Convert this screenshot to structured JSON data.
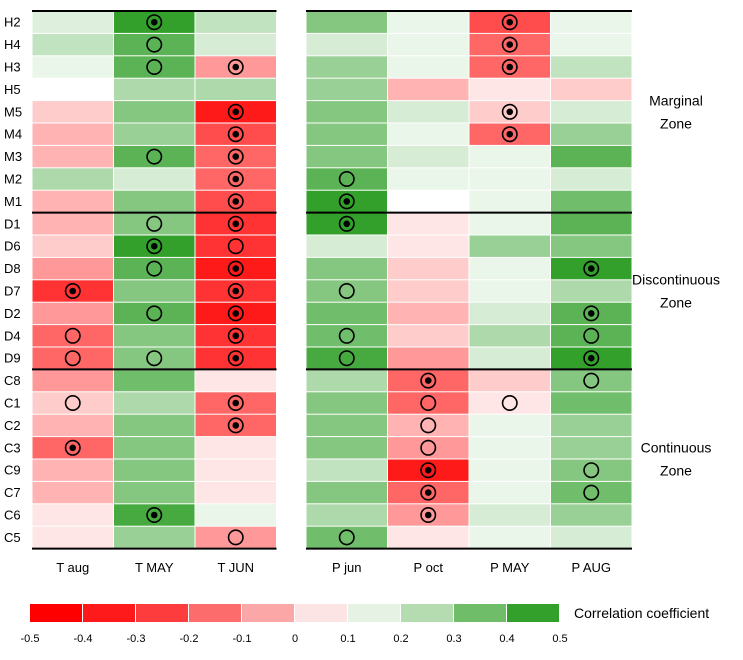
{
  "chart_data": {
    "type": "heatmap",
    "title": "",
    "value_label": "Correlation coefficient",
    "rows": [
      "H2",
      "H4",
      "H3",
      "H5",
      "M5",
      "M4",
      "M3",
      "M2",
      "M1",
      "D1",
      "D6",
      "D8",
      "D7",
      "D2",
      "D4",
      "D9",
      "C8",
      "C1",
      "C2",
      "C3",
      "C9",
      "C7",
      "C6",
      "C5"
    ],
    "panels": [
      {
        "columns": [
          "T aug",
          "T MAY",
          "T JUN"
        ],
        "values": [
          [
            0.08,
            0.5,
            0.15
          ],
          [
            0.15,
            0.4,
            0.1
          ],
          [
            0.05,
            0.4,
            -0.2
          ],
          [
            0.0,
            0.2,
            0.2
          ],
          [
            -0.1,
            0.3,
            -0.45
          ],
          [
            -0.15,
            0.25,
            -0.35
          ],
          [
            -0.15,
            0.4,
            -0.3
          ],
          [
            0.2,
            0.1,
            -0.3
          ],
          [
            -0.15,
            0.3,
            -0.35
          ],
          [
            -0.15,
            0.3,
            -0.4
          ],
          [
            -0.1,
            0.5,
            -0.4
          ],
          [
            -0.2,
            0.4,
            -0.45
          ],
          [
            -0.4,
            0.3,
            -0.4
          ],
          [
            -0.2,
            0.4,
            -0.45
          ],
          [
            -0.3,
            0.3,
            -0.4
          ],
          [
            -0.3,
            0.3,
            -0.4
          ],
          [
            -0.2,
            0.35,
            -0.05
          ],
          [
            -0.1,
            0.2,
            -0.3
          ],
          [
            -0.15,
            0.3,
            -0.3
          ],
          [
            -0.3,
            0.3,
            -0.05
          ],
          [
            -0.15,
            0.3,
            -0.05
          ],
          [
            -0.15,
            0.3,
            -0.05
          ],
          [
            -0.05,
            0.45,
            0.05
          ],
          [
            -0.05,
            0.25,
            -0.2
          ]
        ],
        "marks": [
          [
            "",
            "dot",
            ""
          ],
          [
            "",
            "ring",
            ""
          ],
          [
            "",
            "ring",
            "dot"
          ],
          [
            "",
            "",
            ""
          ],
          [
            "",
            "",
            "dot"
          ],
          [
            "",
            "",
            "dot"
          ],
          [
            "",
            "ring",
            "dot"
          ],
          [
            "",
            "",
            "dot"
          ],
          [
            "",
            "",
            "dot"
          ],
          [
            "",
            "ring",
            "dot"
          ],
          [
            "",
            "dot",
            "ring"
          ],
          [
            "",
            "ring",
            "dot"
          ],
          [
            "dot",
            "",
            "dot"
          ],
          [
            "",
            "ring",
            "dot"
          ],
          [
            "ring",
            "",
            "dot"
          ],
          [
            "ring",
            "ring",
            "dot"
          ],
          [
            "",
            "",
            ""
          ],
          [
            "ring",
            "",
            "dot"
          ],
          [
            "",
            "",
            "dot"
          ],
          [
            "dot",
            "",
            ""
          ],
          [
            "",
            "",
            ""
          ],
          [
            "",
            "",
            ""
          ],
          [
            "",
            "dot",
            ""
          ],
          [
            "",
            "",
            "ring"
          ]
        ]
      },
      {
        "columns": [
          "P jun",
          "P oct",
          "P MAY",
          "P AUG"
        ],
        "values": [
          [
            0.3,
            0.05,
            -0.35,
            0.05
          ],
          [
            0.1,
            0.05,
            -0.3,
            0.05
          ],
          [
            0.25,
            0.05,
            -0.3,
            0.15
          ],
          [
            0.25,
            -0.15,
            -0.05,
            -0.1
          ],
          [
            0.3,
            0.1,
            -0.1,
            0.1
          ],
          [
            0.3,
            0.05,
            -0.3,
            0.25
          ],
          [
            0.3,
            0.1,
            0.05,
            0.4
          ],
          [
            0.4,
            0.05,
            0.05,
            0.1
          ],
          [
            0.5,
            0.0,
            0.05,
            0.35
          ],
          [
            0.5,
            -0.05,
            0.05,
            0.4
          ],
          [
            0.1,
            -0.05,
            0.25,
            0.3
          ],
          [
            0.3,
            -0.1,
            0.05,
            0.5
          ],
          [
            0.3,
            -0.1,
            0.05,
            0.2
          ],
          [
            0.35,
            -0.15,
            0.1,
            0.4
          ],
          [
            0.35,
            -0.1,
            0.2,
            0.4
          ],
          [
            0.45,
            -0.2,
            0.1,
            0.5
          ],
          [
            0.2,
            -0.3,
            -0.1,
            0.3
          ],
          [
            0.3,
            -0.3,
            -0.05,
            0.35
          ],
          [
            0.3,
            -0.15,
            0.05,
            0.25
          ],
          [
            0.3,
            -0.2,
            0.05,
            0.25
          ],
          [
            0.15,
            -0.45,
            0.05,
            0.3
          ],
          [
            0.3,
            -0.3,
            0.05,
            0.35
          ],
          [
            0.2,
            -0.2,
            0.1,
            0.25
          ],
          [
            0.35,
            -0.05,
            0.05,
            0.1
          ]
        ],
        "marks": [
          [
            "",
            "",
            "dot",
            ""
          ],
          [
            "",
            "",
            "dot",
            ""
          ],
          [
            "",
            "",
            "dot",
            ""
          ],
          [
            "",
            "",
            "",
            ""
          ],
          [
            "",
            "",
            "dot",
            ""
          ],
          [
            "",
            "",
            "dot",
            ""
          ],
          [
            "",
            "",
            "",
            ""
          ],
          [
            "ring",
            "",
            "",
            ""
          ],
          [
            "dot",
            "",
            "",
            ""
          ],
          [
            "dot",
            "",
            "",
            ""
          ],
          [
            "",
            "",
            "",
            ""
          ],
          [
            "",
            "",
            "",
            "dot"
          ],
          [
            "ring",
            "",
            "",
            ""
          ],
          [
            "",
            "",
            "",
            "dot"
          ],
          [
            "ring",
            "",
            "",
            "ring"
          ],
          [
            "ring",
            "",
            "",
            "dot"
          ],
          [
            "",
            "dot",
            "",
            "ring"
          ],
          [
            "",
            "ring",
            "ring",
            ""
          ],
          [
            "",
            "ring",
            "",
            ""
          ],
          [
            "",
            "ring",
            "",
            ""
          ],
          [
            "",
            "dot",
            "",
            "ring"
          ],
          [
            "",
            "dot",
            "",
            "ring"
          ],
          [
            "",
            "dot",
            "",
            ""
          ],
          [
            "ring",
            "",
            "",
            ""
          ]
        ]
      }
    ],
    "zones": [
      {
        "label_lines": [
          "Marginal",
          "Zone"
        ],
        "start_row": 0,
        "end_row": 8
      },
      {
        "label_lines": [
          "Discontinuous",
          "Zone"
        ],
        "start_row": 9,
        "end_row": 15
      },
      {
        "label_lines": [
          "Continuous",
          "Zone"
        ],
        "start_row": 16,
        "end_row": 23
      }
    ],
    "legend": {
      "colors": [
        "#ff0000",
        "#fe1a1a",
        "#fd3d3d",
        "#fc6c6c",
        "#fca7a7",
        "#fde4e4",
        "#e6f3e4",
        "#b5dcb0",
        "#6fbd68",
        "#33a02c"
      ],
      "ticks": [
        "-0.5",
        "-0.4",
        "-0.3",
        "-0.2",
        "-0.1",
        "0",
        "0.1",
        "0.2",
        "0.3",
        "0.4",
        "0.5"
      ],
      "title": "Correlation coefficient"
    },
    "colors": {
      "strong_negative": "#ff0000",
      "neutral": "#ffffff",
      "strong_positive": "#33a02c",
      "divider": "#000000"
    }
  }
}
